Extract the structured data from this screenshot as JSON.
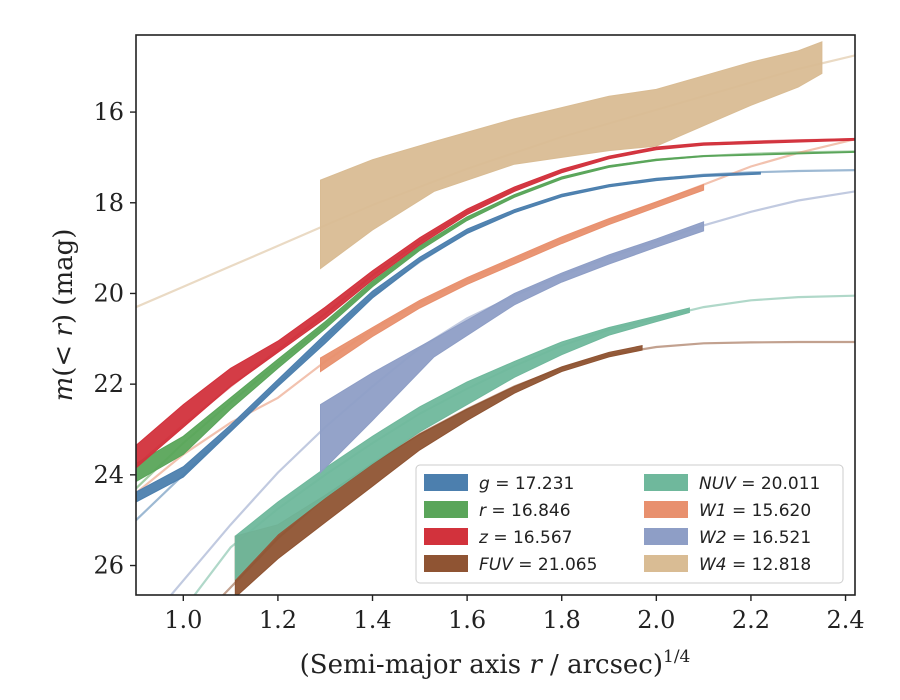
{
  "chart_data": {
    "type": "line",
    "xlabel": "(Semi-major axis r / arcsec)",
    "xlabel_parts": {
      "pre": "(Semi-major axis ",
      "var": "r",
      "post": " / arcsec)",
      "sup": "1/4"
    },
    "ylabel": "m(< r) (mag)",
    "ylabel_parts": {
      "var": "m",
      "open": "(",
      "lt": "< ",
      "r": "r",
      "close": ")",
      "unit": " (mag)"
    },
    "xlim": [
      0.9,
      2.42
    ],
    "ylim": [
      26.65,
      14.3
    ],
    "y_inverted": true,
    "xticks": [
      "1.0",
      "1.2",
      "1.4",
      "1.6",
      "1.8",
      "2.0",
      "2.2",
      "2.4"
    ],
    "xtick_values": [
      1.0,
      1.2,
      1.4,
      1.6,
      1.8,
      2.0,
      2.2,
      2.4
    ],
    "yticks": [
      "16",
      "18",
      "20",
      "22",
      "24",
      "26"
    ],
    "ytick_values": [
      16,
      18,
      20,
      22,
      24,
      26
    ],
    "grid": false,
    "legend_placement": "lower-right",
    "series": [
      {
        "key": "g",
        "label_var": "g",
        "label_value": "= 17.231",
        "color": "#4c7fae",
        "fit": [
          [
            0.9,
            25.0
          ],
          [
            1.0,
            24.0
          ],
          [
            1.1,
            23.0
          ],
          [
            1.2,
            22.0
          ],
          [
            1.3,
            21.0
          ],
          [
            1.4,
            20.05
          ],
          [
            1.5,
            19.3
          ],
          [
            1.6,
            18.65
          ],
          [
            1.7,
            18.2
          ],
          [
            1.8,
            17.85
          ],
          [
            1.9,
            17.62
          ],
          [
            2.0,
            17.48
          ],
          [
            2.1,
            17.38
          ],
          [
            2.2,
            17.33
          ],
          [
            2.3,
            17.3
          ],
          [
            2.42,
            17.28
          ]
        ],
        "band_x": [
          0.9,
          1.0,
          1.1,
          1.2,
          1.3,
          1.4,
          1.5,
          1.6,
          1.7,
          1.8,
          1.9,
          2.0,
          2.1,
          2.22
        ],
        "band_upper": [
          24.38,
          23.82,
          22.9,
          21.9,
          20.9,
          19.95,
          19.2,
          18.58,
          18.15,
          17.81,
          17.6,
          17.46,
          17.38,
          17.33
        ],
        "band_lower": [
          24.6,
          24.05,
          23.05,
          22.05,
          21.1,
          20.1,
          19.3,
          18.68,
          18.22,
          17.87,
          17.65,
          17.51,
          17.42,
          17.37
        ]
      },
      {
        "key": "r",
        "label_var": "r",
        "label_value": "= 16.846",
        "color": "#5aa55a",
        "fit": [
          [
            0.9,
            24.3
          ],
          [
            1.0,
            23.3
          ],
          [
            1.1,
            22.4
          ],
          [
            1.2,
            21.55
          ],
          [
            1.3,
            20.7
          ],
          [
            1.4,
            19.8
          ],
          [
            1.5,
            19.0
          ],
          [
            1.6,
            18.35
          ],
          [
            1.7,
            17.85
          ],
          [
            1.8,
            17.45
          ],
          [
            1.9,
            17.2
          ],
          [
            2.0,
            17.05
          ],
          [
            2.1,
            16.97
          ],
          [
            2.2,
            16.92
          ],
          [
            2.3,
            16.89
          ],
          [
            2.42,
            16.87
          ]
        ],
        "band_x": [
          0.9,
          1.0,
          1.1,
          1.2,
          1.3,
          1.4,
          1.5,
          1.6,
          1.7,
          1.8,
          1.9,
          2.0,
          2.1,
          2.42
        ],
        "band_upper": [
          23.75,
          23.15,
          22.3,
          21.45,
          20.62,
          19.73,
          18.95,
          18.31,
          17.82,
          17.43,
          17.18,
          17.04,
          16.96,
          16.87
        ],
        "band_lower": [
          24.15,
          23.55,
          22.55,
          21.65,
          20.78,
          19.85,
          19.05,
          18.39,
          17.88,
          17.48,
          17.22,
          17.07,
          16.98,
          16.89
        ]
      },
      {
        "key": "z",
        "label_var": "z",
        "label_value": "= 16.567",
        "color": "#d2323c",
        "fit": [
          [
            0.9,
            23.8
          ],
          [
            1.0,
            22.9
          ],
          [
            1.1,
            22.05
          ],
          [
            1.2,
            21.25
          ],
          [
            1.3,
            20.45
          ],
          [
            1.4,
            19.6
          ],
          [
            1.5,
            18.85
          ],
          [
            1.6,
            18.2
          ],
          [
            1.7,
            17.7
          ],
          [
            1.8,
            17.3
          ],
          [
            1.9,
            17.0
          ],
          [
            2.0,
            16.8
          ],
          [
            2.1,
            16.7
          ],
          [
            2.2,
            16.65
          ],
          [
            2.3,
            16.62
          ],
          [
            2.42,
            16.6
          ]
        ],
        "band_x": [
          0.9,
          1.0,
          1.1,
          1.2,
          1.3,
          1.4,
          1.5,
          1.6,
          1.7,
          1.8,
          1.9,
          2.0,
          2.1,
          2.42
        ],
        "band_upper": [
          23.35,
          22.45,
          21.65,
          21.05,
          20.3,
          19.5,
          18.77,
          18.14,
          17.65,
          17.26,
          16.97,
          16.77,
          16.68,
          16.58
        ],
        "band_lower": [
          23.85,
          22.95,
          22.05,
          21.3,
          20.55,
          19.7,
          18.93,
          18.26,
          17.75,
          17.34,
          17.03,
          16.83,
          16.73,
          16.62
        ]
      },
      {
        "key": "FUV",
        "label_var": "FUV",
        "label_value": "= 21.065",
        "color": "#8f5433",
        "fit": [
          [
            1.08,
            26.7
          ],
          [
            1.2,
            25.4
          ],
          [
            1.3,
            24.5
          ],
          [
            1.4,
            23.75
          ],
          [
            1.5,
            23.1
          ],
          [
            1.6,
            22.55
          ],
          [
            1.7,
            22.05
          ],
          [
            1.8,
            21.65
          ],
          [
            1.9,
            21.35
          ],
          [
            2.0,
            21.18
          ],
          [
            2.1,
            21.1
          ],
          [
            2.2,
            21.08
          ],
          [
            2.3,
            21.07
          ],
          [
            2.42,
            21.07
          ]
        ],
        "band_x": [
          1.11,
          1.2,
          1.3,
          1.4,
          1.5,
          1.6,
          1.7,
          1.8,
          1.9,
          1.97
        ],
        "band_upper": [
          25.35,
          25.1,
          24.45,
          23.75,
          23.1,
          22.55,
          22.05,
          21.62,
          21.3,
          21.15
        ],
        "band_lower": [
          26.7,
          25.85,
          25.05,
          24.25,
          23.45,
          22.8,
          22.2,
          21.72,
          21.4,
          21.25
        ]
      },
      {
        "key": "NUV",
        "label_var": "NUV",
        "label_value": "= 20.011",
        "color": "#6fb89c",
        "fit": [
          [
            1.02,
            26.7
          ],
          [
            1.1,
            25.6
          ],
          [
            1.2,
            24.75
          ],
          [
            1.3,
            24.0
          ],
          [
            1.4,
            23.3
          ],
          [
            1.5,
            22.65
          ],
          [
            1.6,
            22.1
          ],
          [
            1.7,
            21.6
          ],
          [
            1.8,
            21.15
          ],
          [
            1.9,
            20.8
          ],
          [
            2.0,
            20.55
          ],
          [
            2.1,
            20.3
          ],
          [
            2.2,
            20.15
          ],
          [
            2.3,
            20.08
          ],
          [
            2.42,
            20.05
          ]
        ],
        "band_x": [
          1.11,
          1.2,
          1.3,
          1.4,
          1.5,
          1.6,
          1.7,
          1.8,
          1.9,
          2.0,
          2.07
        ],
        "band_upper": [
          25.35,
          24.6,
          23.85,
          23.15,
          22.5,
          21.95,
          21.5,
          21.07,
          20.75,
          20.5,
          20.32
        ],
        "band_lower": [
          26.3,
          25.3,
          24.5,
          23.75,
          23.05,
          22.45,
          21.85,
          21.35,
          20.92,
          20.62,
          20.42
        ]
      },
      {
        "key": "W1",
        "label_var": "W1",
        "label_value": "= 15.620",
        "color": "#e8906e",
        "fit": [
          [
            0.9,
            24.4
          ],
          [
            1.0,
            23.55
          ],
          [
            1.1,
            22.85
          ],
          [
            1.2,
            22.3
          ],
          [
            1.3,
            21.5
          ],
          [
            1.4,
            20.8
          ],
          [
            1.5,
            20.2
          ],
          [
            1.6,
            19.7
          ],
          [
            1.7,
            19.25
          ],
          [
            1.8,
            18.8
          ],
          [
            1.9,
            18.4
          ],
          [
            2.0,
            18.0
          ],
          [
            2.1,
            17.6
          ],
          [
            2.2,
            17.2
          ],
          [
            2.3,
            16.9
          ],
          [
            2.42,
            16.6
          ]
        ],
        "band_x": [
          1.29,
          1.4,
          1.5,
          1.6,
          1.7,
          1.8,
          1.9,
          2.0,
          2.1
        ],
        "band_upper": [
          21.42,
          20.75,
          20.15,
          19.65,
          19.2,
          18.75,
          18.35,
          17.98,
          17.6
        ],
        "band_lower": [
          21.72,
          20.95,
          20.32,
          19.8,
          19.35,
          18.9,
          18.48,
          18.1,
          17.72
        ]
      },
      {
        "key": "W2",
        "label_var": "W2",
        "label_value": "= 16.521",
        "color": "#8e9ec6",
        "fit": [
          [
            0.97,
            26.7
          ],
          [
            1.1,
            25.1
          ],
          [
            1.2,
            23.95
          ],
          [
            1.3,
            22.95
          ],
          [
            1.4,
            22.05
          ],
          [
            1.5,
            21.2
          ],
          [
            1.6,
            20.55
          ],
          [
            1.7,
            20.05
          ],
          [
            1.8,
            19.6
          ],
          [
            1.9,
            19.2
          ],
          [
            2.0,
            18.85
          ],
          [
            2.1,
            18.5
          ],
          [
            2.2,
            18.2
          ],
          [
            2.3,
            17.95
          ],
          [
            2.42,
            17.75
          ]
        ],
        "band_x": [
          1.29,
          1.4,
          1.53,
          1.7,
          1.8,
          1.9,
          2.0,
          2.1
        ],
        "band_upper": [
          22.45,
          21.75,
          21.0,
          20.0,
          19.55,
          19.15,
          18.8,
          18.42
        ],
        "band_lower": [
          23.95,
          22.8,
          21.4,
          20.25,
          19.75,
          19.35,
          18.98,
          18.62
        ]
      },
      {
        "key": "W4",
        "label_var": "W4",
        "label_value": "= 12.818",
        "color": "#d9bc94",
        "fit": [
          [
            0.9,
            20.3
          ],
          [
            1.0,
            19.85
          ],
          [
            1.1,
            19.4
          ],
          [
            1.2,
            18.95
          ],
          [
            1.3,
            18.5
          ],
          [
            1.4,
            18.05
          ],
          [
            1.5,
            17.65
          ],
          [
            1.6,
            17.25
          ],
          [
            1.7,
            16.9
          ],
          [
            1.8,
            16.55
          ],
          [
            1.9,
            16.25
          ],
          [
            2.0,
            15.95
          ],
          [
            2.1,
            15.65
          ],
          [
            2.2,
            15.35
          ],
          [
            2.3,
            15.05
          ],
          [
            2.42,
            14.75
          ]
        ],
        "band_x": [
          1.29,
          1.4,
          1.53,
          1.7,
          1.8,
          1.9,
          2.0,
          2.1,
          2.2,
          2.3,
          2.35
        ],
        "band_upper": [
          17.5,
          17.05,
          16.65,
          16.15,
          15.9,
          15.65,
          15.5,
          15.2,
          14.9,
          14.65,
          14.45
        ],
        "band_lower": [
          19.45,
          18.6,
          17.75,
          17.15,
          17.0,
          16.85,
          16.75,
          16.3,
          15.85,
          15.45,
          15.15
        ]
      }
    ],
    "legend_order": [
      "g",
      "r",
      "z",
      "FUV",
      "NUV",
      "W1",
      "W2",
      "W4"
    ]
  }
}
